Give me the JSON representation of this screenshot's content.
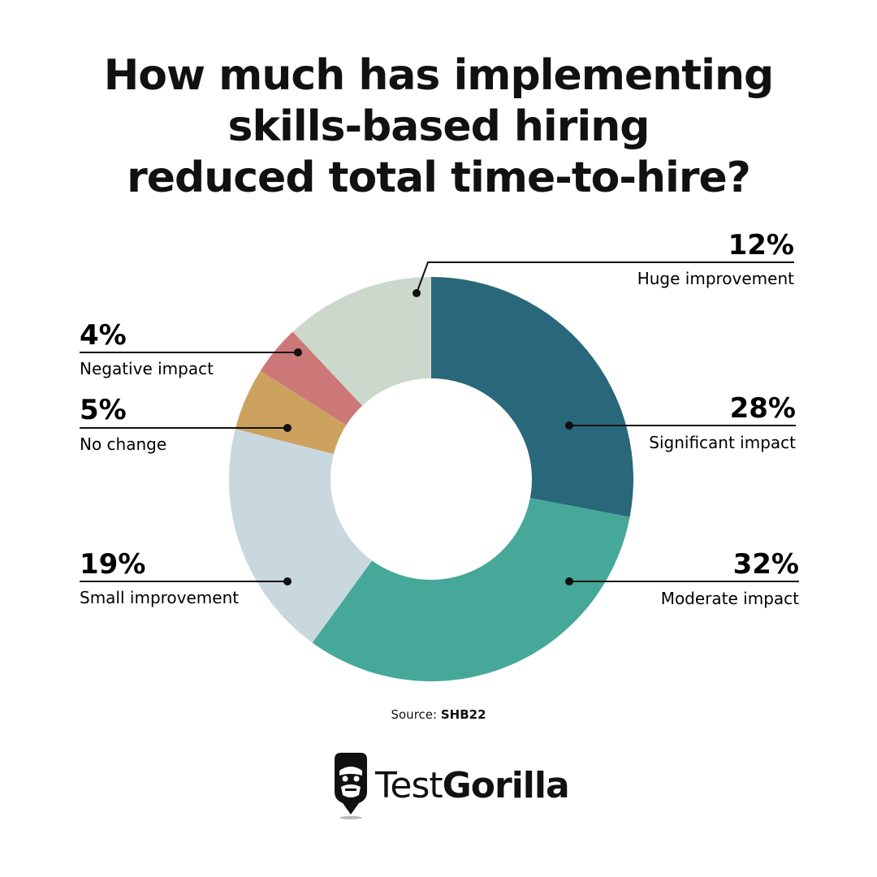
{
  "title": {
    "line1": "How much has implementing",
    "line2": "skills-based hiring",
    "line3": "reduced total time-to-hire?"
  },
  "source": {
    "label": "Source:",
    "value": "SHB22"
  },
  "brand": {
    "part1": "Test",
    "part2": "Gorilla"
  },
  "chart_data": {
    "type": "pie",
    "title": "How much has implementing skills-based hiring reduced total time-to-hire?",
    "slices": [
      {
        "label": "Significant impact",
        "value": 28,
        "value_label": "28%",
        "color": "#28687a"
      },
      {
        "label": "Moderate impact",
        "value": 32,
        "value_label": "32%",
        "color": "#46a898"
      },
      {
        "label": "Small improvement",
        "value": 19,
        "value_label": "19%",
        "color": "#c9d8de"
      },
      {
        "label": "No change",
        "value": 5,
        "value_label": "5%",
        "color": "#cca25e"
      },
      {
        "label": "Negative impact",
        "value": 4,
        "value_label": "4%",
        "color": "#cc7879"
      },
      {
        "label": "Huge improvement",
        "value": 12,
        "value_label": "12%",
        "color": "#cdd8cc"
      }
    ]
  }
}
